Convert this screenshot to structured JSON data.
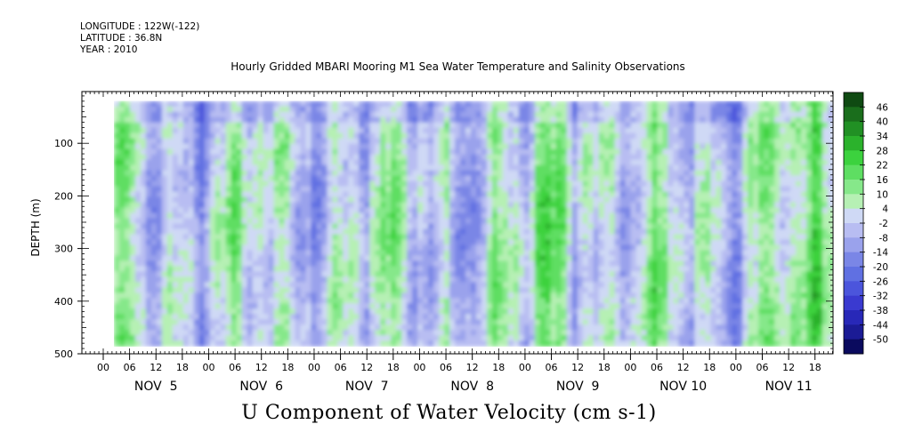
{
  "header": {
    "longitude": "LONGITUDE : 122W(-122)",
    "latitude": "LATITUDE : 36.8N",
    "year": "YEAR : 2010",
    "title": "Hourly Gridded MBARI Mooring M1 Sea Water Temperature and Salinity Observations"
  },
  "chart_data": {
    "type": "heatmap",
    "title": "U Component of Water Velocity (cm s-1)",
    "ylabel": "DEPTH (m)",
    "ylim": [
      0,
      500
    ],
    "y_inverted": true,
    "y_ticks": [
      100,
      200,
      300,
      400,
      500
    ],
    "y_tick_labels": [
      "100",
      "200",
      "300",
      "400",
      "500"
    ],
    "x_hour_ticks": [
      "00",
      "06",
      "12",
      "18",
      "00",
      "06",
      "12",
      "18",
      "00",
      "06",
      "12",
      "18",
      "00",
      "06",
      "12",
      "18",
      "00",
      "06",
      "12",
      "18",
      "00",
      "06",
      "12",
      "18",
      "00",
      "06",
      "12",
      "18"
    ],
    "x_day_labels": [
      "NOV  5",
      "NOV  6",
      "NOV  7",
      "NOV  8",
      "NOV  9",
      "NOV 10",
      "NOV 11"
    ],
    "data_depth_range": [
      20,
      485
    ],
    "colorbar": {
      "levels": [
        -50,
        -44,
        -38,
        -32,
        -26,
        -20,
        -14,
        -8,
        -2,
        4,
        10,
        16,
        22,
        28,
        34,
        40,
        46
      ],
      "labels": [
        "46",
        "40",
        "34",
        "28",
        "22",
        "16",
        "10",
        "4",
        "-2",
        "-8",
        "-14",
        "-20",
        "-26",
        "-32",
        "-38",
        "-44",
        "-50"
      ],
      "colors": [
        "#0a0a5e",
        "#1b1b95",
        "#2828b8",
        "#3a3ad0",
        "#4b55dc",
        "#6070e2",
        "#7a86e6",
        "#9aa2ec",
        "#b8bdf2",
        "#cfd9f5",
        "#b6f0b4",
        "#86e88a",
        "#5ede62",
        "#3cd23e",
        "#2bb22c",
        "#219024",
        "#1a6e1c",
        "#0f4a12"
      ]
    },
    "pattern_summary": "Alternating blue (westward, negative U) and green (eastward, positive U) vertical bands over Nov 5-11 2010, magnitudes roughly -30 to +30 cm s-1"
  }
}
